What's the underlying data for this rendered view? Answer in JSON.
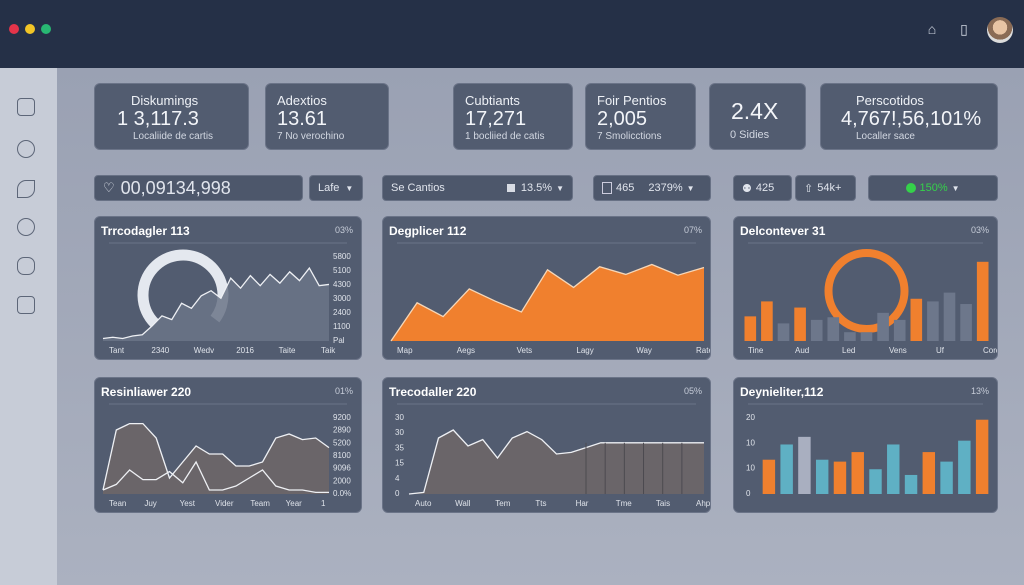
{
  "colors": {
    "accent_orange": "#f0802e",
    "teal": "#5fb0c4",
    "gray_bar": "#6d778b",
    "green": "#35d14a"
  },
  "header": {
    "icons": [
      "bell-icon",
      "clipboard-icon"
    ]
  },
  "sidebar": {
    "icons": [
      "document-icon",
      "globe-icon",
      "rocket-icon",
      "clock-icon",
      "gamepad-icon",
      "calendar-icon"
    ]
  },
  "kpis": [
    {
      "label": "Diskumings",
      "value": "1 3,117.3",
      "sub": "Localiide de cartis"
    },
    {
      "label": "Adextios",
      "value": "13.61",
      "sub": "7 No verochino"
    },
    {
      "label": "Cubtiants",
      "value": "17,271",
      "sub": "1 bocliied de catis"
    },
    {
      "label": "Foir Pentios",
      "value": "2,005",
      "sub": "7 Smolicctions"
    },
    {
      "label": "",
      "value": "2.4X",
      "sub": "0 Sidies"
    },
    {
      "label": "Perscotidos",
      "value": "4,767!,56,101%",
      "sub": "Localler sace"
    }
  ],
  "filters": {
    "search_value": "00,09134,998",
    "lafe": "Lafe",
    "se_cantios": "Se Cantios",
    "se_cantios_pct": "13.5%",
    "f465": "465",
    "f465_pct": "2379%",
    "f425": "425",
    "f54k": "54k+",
    "green_pct": "150%"
  },
  "chart_data": [
    {
      "type": "line",
      "title": "Trrcodagler 113",
      "pct": "03%",
      "gauge": 0.75,
      "ylabels": [
        "5800",
        "5100",
        "4300",
        "3000",
        "2400",
        "1100",
        "Pal"
      ],
      "xlabels": [
        "Tant",
        "2340",
        "Wedv",
        "2016",
        "Taite",
        "Taik"
      ],
      "series": [
        {
          "name": "a",
          "values": [
            2,
            3,
            2,
            4,
            5,
            12,
            20,
            17,
            30,
            26,
            36,
            40,
            34,
            50,
            42,
            52,
            44,
            53,
            46,
            55,
            48,
            58,
            44,
            45
          ]
        }
      ],
      "ylim": [
        0,
        70
      ]
    },
    {
      "type": "area",
      "title": "Degplicer 112",
      "pct": "07%",
      "xlabels": [
        "Map",
        "Aegs",
        "Vets",
        "Lagy",
        "Way",
        "Rate"
      ],
      "series": [
        {
          "name": "a",
          "values": [
            0,
            50,
            32,
            68,
            52,
            38,
            93,
            70,
            97,
            87,
            100,
            86,
            96
          ]
        }
      ],
      "ylim": [
        0,
        115
      ]
    },
    {
      "type": "bar",
      "title": "Delcontever 31",
      "pct": "03%",
      "ring": true,
      "xlabels": [
        "Tine",
        "Aud",
        "Led",
        "Vens",
        "Uf",
        "Cordy"
      ],
      "values": [
        28,
        45,
        20,
        38,
        24,
        27,
        10,
        10,
        32,
        24,
        48,
        45,
        55,
        42,
        90
      ],
      "colors": [
        "o",
        "o",
        "g",
        "o",
        "g",
        "g",
        "g",
        "g",
        "g",
        "g",
        "o",
        "g",
        "g",
        "g",
        "o"
      ],
      "ylim": [
        0,
        100
      ]
    },
    {
      "type": "line",
      "title": "Resinliawer 220",
      "pct": "01%",
      "ylabels": [
        "9200",
        "2890",
        "5200",
        "8100",
        "9096",
        "2000",
        "0.0%"
      ],
      "xlabels": [
        "Tean",
        "Juy",
        "Yest",
        "Vider",
        "Team",
        "Year",
        "1"
      ],
      "series": [
        {
          "name": "a",
          "values": [
            5,
            80,
            88,
            88,
            70,
            20,
            40,
            60,
            50,
            50,
            35,
            35,
            40,
            70,
            75,
            68,
            70,
            58
          ]
        },
        {
          "name": "b",
          "values": [
            5,
            12,
            30,
            18,
            18,
            28,
            14,
            40,
            5,
            5,
            10,
            20,
            30,
            10,
            5,
            5,
            2,
            2
          ]
        }
      ],
      "ylim": [
        0,
        100
      ]
    },
    {
      "type": "area",
      "title": "Trecodaller 220",
      "pct": "05%",
      "ylabels": [
        "30",
        "30",
        "35",
        "15",
        "4",
        "0"
      ],
      "xlabels": [
        "Auto",
        "Wall",
        "Tem",
        "Tts",
        "Har",
        "Tme",
        "Tais",
        "Ahpr"
      ],
      "series": [
        {
          "name": "a",
          "values": [
            0,
            2,
            70,
            80,
            60,
            68,
            45,
            70,
            78,
            68,
            50,
            52,
            58,
            64,
            64,
            64,
            64,
            64,
            64,
            64,
            64
          ]
        }
      ],
      "ylim": [
        0,
        100
      ]
    },
    {
      "type": "bar",
      "title": "Deynieliter,112",
      "pct": "13%",
      "ylabels": [
        "20",
        "10",
        "10",
        "0"
      ],
      "values": [
        9,
        13,
        15,
        9,
        8.5,
        11,
        6.5,
        13,
        5,
        11,
        8.5,
        14,
        19.5
      ],
      "colors": [
        "o",
        "t",
        "s",
        "t",
        "o",
        "o",
        "t",
        "t",
        "t",
        "o",
        "t",
        "t",
        "o"
      ],
      "ylim": [
        0,
        21
      ]
    }
  ]
}
